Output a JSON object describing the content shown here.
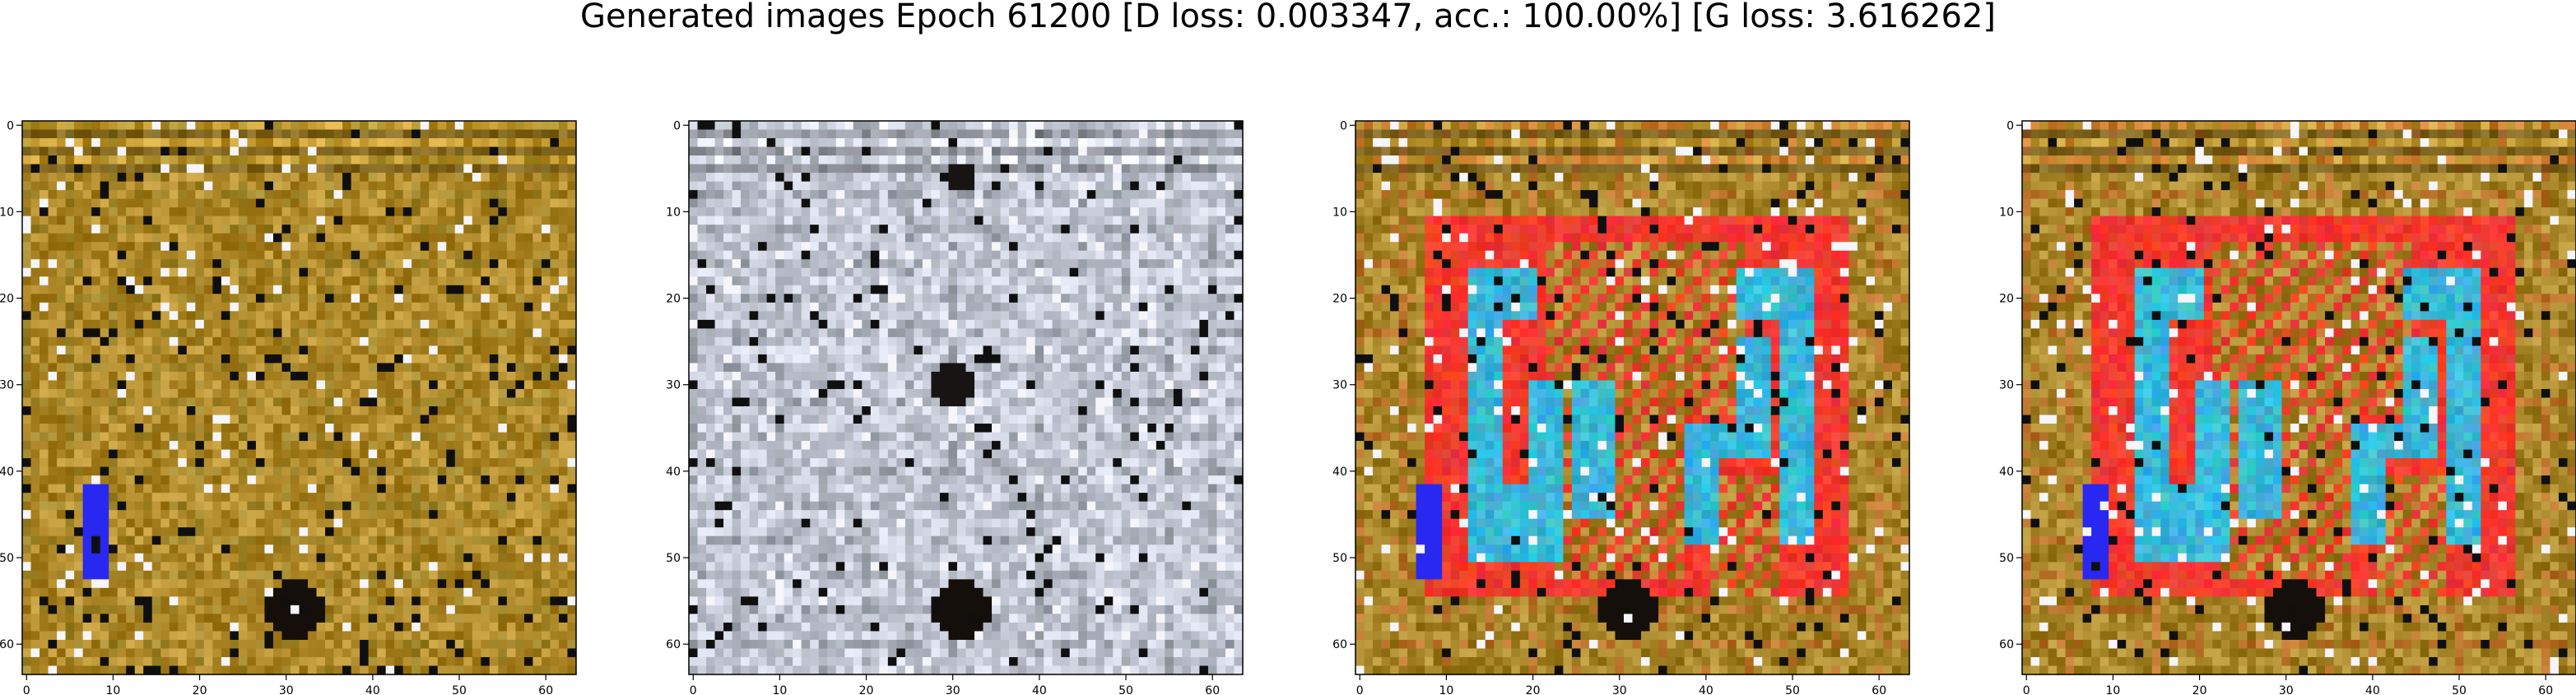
{
  "figure": {
    "suptitle": "Generated images Epoch 61200 [D loss: 0.003347, acc.: 100.00%] [G loss: 3.616262]"
  },
  "chart_data": {
    "type": "heatmap",
    "description": "Grid of 4 generated 64x64 RGB images from a GAN",
    "panels": [
      {
        "name": "generated-image-1",
        "base_color": "#b08a2a",
        "motif": "maze-faint",
        "motif_color": "#6f7a2a",
        "xlim": [
          0,
          63
        ],
        "ylim": [
          63,
          0
        ],
        "xticks": [
          0,
          10,
          20,
          30,
          40,
          50,
          60
        ],
        "yticks": [
          0,
          10,
          20,
          30,
          40,
          50,
          60
        ]
      },
      {
        "name": "generated-image-2",
        "base_color": "#c8ccd8",
        "motif": "maze-faint",
        "motif_color": "#2b3a38",
        "xlim": [
          0,
          63
        ],
        "ylim": [
          63,
          0
        ],
        "xticks": [
          0,
          10,
          20,
          30,
          40,
          50,
          60
        ],
        "yticks": [
          0,
          10,
          20,
          30,
          40,
          50,
          60
        ]
      },
      {
        "name": "generated-image-3",
        "base_color": "#a8862a",
        "motif": "maze-red-cyan",
        "motif_color": "#f23a2e",
        "accent_color": "#38b8d8",
        "xlim": [
          0,
          63
        ],
        "ylim": [
          63,
          0
        ],
        "xticks": [
          0,
          10,
          20,
          30,
          40,
          50,
          60
        ],
        "yticks": [
          0,
          10,
          20,
          30,
          40,
          50,
          60
        ]
      },
      {
        "name": "generated-image-4",
        "base_color": "#a8862a",
        "motif": "maze-red-cyan",
        "motif_color": "#f23a2e",
        "accent_color": "#38b8d8",
        "xlim": [
          0,
          63
        ],
        "ylim": [
          63,
          0
        ],
        "xticks": [
          0,
          10,
          20,
          30,
          40,
          50,
          60
        ],
        "yticks": [
          0,
          10,
          20,
          30,
          40,
          50,
          60
        ]
      }
    ]
  }
}
